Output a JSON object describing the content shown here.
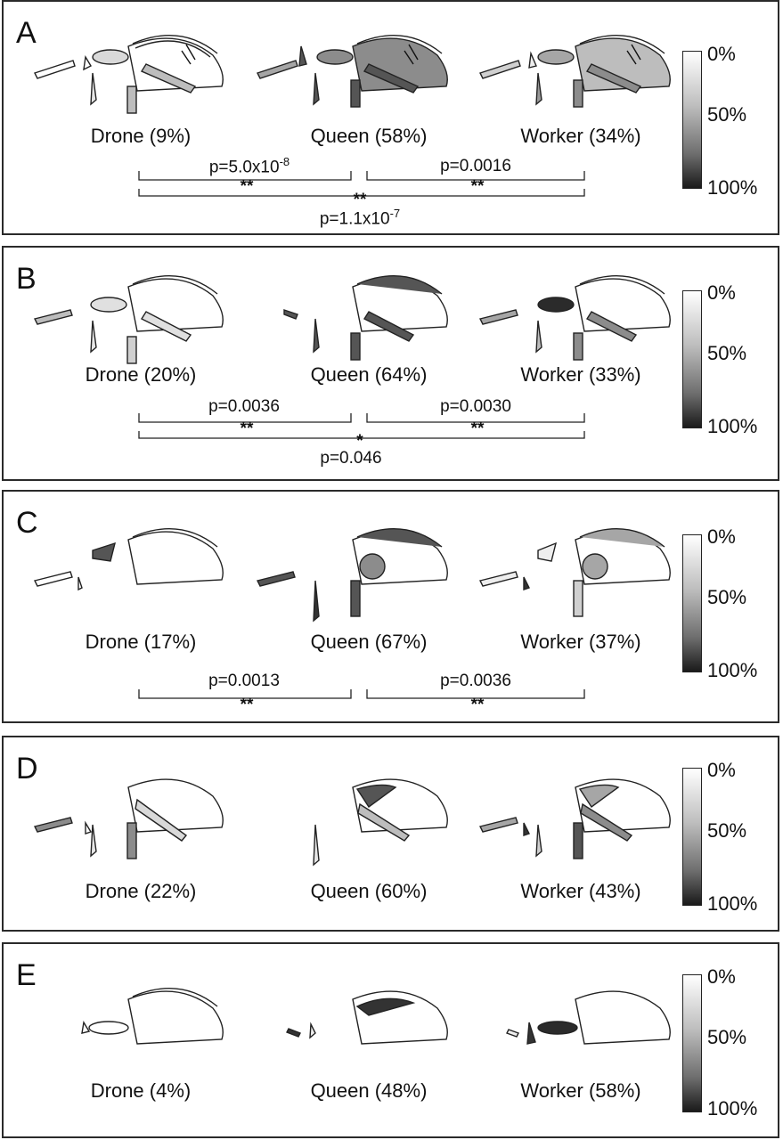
{
  "colorbar": {
    "top": "0%",
    "mid": "50%",
    "bottom": "100%"
  },
  "panels": [
    {
      "letter": "A",
      "labels": [
        "Drone (9%)",
        "Queen (58%)",
        "Worker (34%)"
      ],
      "comparisons": {
        "left": {
          "p_base": "p=5.0x10",
          "p_exp": "-8",
          "stars": "**"
        },
        "right": {
          "p_base": "p=0.0016",
          "p_exp": "",
          "stars": "**"
        },
        "outer": {
          "p_base": "p=1.1x10",
          "p_exp": "-7",
          "stars": "**"
        }
      }
    },
    {
      "letter": "B",
      "labels": [
        "Drone (20%)",
        "Queen (64%)",
        "Worker (33%)"
      ],
      "comparisons": {
        "left": {
          "p_base": "p=0.0036",
          "p_exp": "",
          "stars": "**"
        },
        "right": {
          "p_base": "p=0.0030",
          "p_exp": "",
          "stars": "**"
        },
        "outer": {
          "p_base": "p=0.046",
          "p_exp": "",
          "stars": "*"
        }
      }
    },
    {
      "letter": "C",
      "labels": [
        "Drone (17%)",
        "Queen (67%)",
        "Worker (37%)"
      ],
      "comparisons": {
        "left": {
          "p_base": "p=0.0013",
          "p_exp": "",
          "stars": "**"
        },
        "right": {
          "p_base": "p=0.0036",
          "p_exp": "",
          "stars": "**"
        }
      }
    },
    {
      "letter": "D",
      "labels": [
        "Drone (22%)",
        "Queen (60%)",
        "Worker (43%)"
      ]
    },
    {
      "letter": "E",
      "labels": [
        "Drone (4%)",
        "Queen (48%)",
        "Worker (58%)"
      ]
    }
  ]
}
